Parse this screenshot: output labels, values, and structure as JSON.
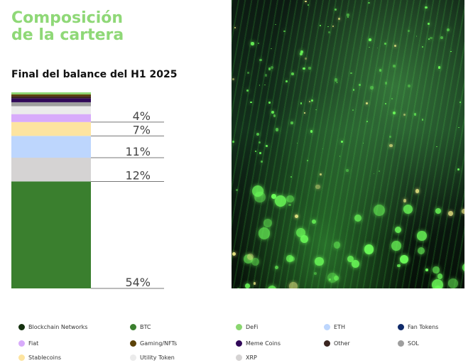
{
  "title_line1": "Composición",
  "title_line2": "de la cartera",
  "chart_data": {
    "type": "bar",
    "stacked": true,
    "subtitle": "Final del balance del H1 2025",
    "unit": "%",
    "segments": [
      {
        "name": "BTC",
        "value": 54,
        "label": "54%",
        "color": "#3a7f2e"
      },
      {
        "name": "XRP",
        "value": 12,
        "label": "12%",
        "color": "#d5d3d3"
      },
      {
        "name": "ETH",
        "value": 11,
        "label": "11%",
        "color": "#bdd6fd"
      },
      {
        "name": "Stablecoins",
        "value": 7,
        "label": "7%",
        "color": "#fde4a0"
      },
      {
        "name": "Fiat",
        "value": 4,
        "label": "4%",
        "color": "#d8abfb"
      },
      {
        "name": "Utility Token",
        "value": 4,
        "label": "",
        "color": "#ebebeb"
      },
      {
        "name": "SOL",
        "value": 2,
        "label": "",
        "color": "#9e9e9e"
      },
      {
        "name": "Meme Coins",
        "value": 2,
        "label": "",
        "color": "#300858"
      },
      {
        "name": "Other",
        "value": 1,
        "label": "",
        "color": "#3a2520"
      },
      {
        "name": "Gaming/NFTs",
        "value": 1,
        "label": "",
        "color": "#5b4208"
      },
      {
        "name": "DeFi",
        "value": 1,
        "label": "",
        "color": "#8ad66f"
      }
    ]
  },
  "legend": [
    {
      "label": "Blockchain Networks",
      "color": "#14300f"
    },
    {
      "label": "BTC",
      "color": "#3a7f2e"
    },
    {
      "label": "DeFi",
      "color": "#8ad66f"
    },
    {
      "label": "ETH",
      "color": "#bdd6fd"
    },
    {
      "label": "Fan Tokens",
      "color": "#0f2a6a"
    },
    {
      "label": "Fiat",
      "color": "#d8abfb"
    },
    {
      "label": "Gaming/NFTs",
      "color": "#5b4208"
    },
    {
      "label": "Meme Coins",
      "color": "#300858"
    },
    {
      "label": "Other",
      "color": "#3a2520"
    },
    {
      "label": "SOL",
      "color": "#9e9e9e"
    },
    {
      "label": "Stablecoins",
      "color": "#fde4a0"
    },
    {
      "label": "Utility Token",
      "color": "#ebebeb"
    },
    {
      "label": "XRP",
      "color": "#d5d3d3"
    }
  ]
}
